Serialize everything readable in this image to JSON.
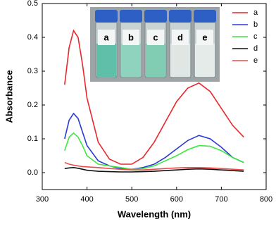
{
  "chart_data": {
    "type": "line",
    "x_label": "Wavelength (nm)",
    "y_label": "Absorbance",
    "x": [
      350,
      360,
      370,
      380,
      390,
      400,
      425,
      450,
      475,
      500,
      525,
      550,
      575,
      600,
      625,
      650,
      675,
      700,
      725,
      750
    ],
    "series": [
      {
        "name": "a",
        "color": "#e8262b",
        "values": [
          0.26,
          0.37,
          0.42,
          0.4,
          0.32,
          0.22,
          0.09,
          0.04,
          0.025,
          0.025,
          0.045,
          0.09,
          0.15,
          0.21,
          0.25,
          0.265,
          0.24,
          0.19,
          0.14,
          0.105
        ]
      },
      {
        "name": "b",
        "color": "#2a3bd1",
        "values": [
          0.1,
          0.155,
          0.175,
          0.16,
          0.12,
          0.08,
          0.035,
          0.02,
          0.012,
          0.01,
          0.015,
          0.025,
          0.045,
          0.07,
          0.095,
          0.11,
          0.1,
          0.075,
          0.045,
          0.03
        ]
      },
      {
        "name": "c",
        "color": "#3ee63e",
        "values": [
          0.065,
          0.105,
          0.117,
          0.105,
          0.08,
          0.05,
          0.025,
          0.02,
          0.015,
          0.01,
          0.012,
          0.02,
          0.035,
          0.05,
          0.068,
          0.08,
          0.078,
          0.065,
          0.045,
          0.03
        ]
      },
      {
        "name": "d",
        "color": "#111111",
        "values": [
          0.012,
          0.014,
          0.015,
          0.013,
          0.01,
          0.007,
          0.004,
          0.003,
          0.002,
          0.002,
          0.003,
          0.004,
          0.006,
          0.008,
          0.01,
          0.011,
          0.01,
          0.008,
          0.006,
          0.004
        ]
      },
      {
        "name": "e",
        "color": "#f04a4a",
        "values": [
          0.03,
          0.025,
          0.022,
          0.02,
          0.018,
          0.017,
          0.015,
          0.012,
          0.01,
          0.008,
          0.008,
          0.01,
          0.012,
          0.014,
          0.015,
          0.015,
          0.014,
          0.012,
          0.01,
          0.008
        ]
      }
    ],
    "xlim": [
      300,
      800
    ],
    "xticks": [
      300,
      400,
      500,
      600,
      700,
      800
    ],
    "ylim": [
      -0.05,
      0.5
    ],
    "yticks": [
      {
        "value": 0,
        "label": "0.0"
      },
      0.1,
      0.2,
      0.3,
      0.4,
      0.5
    ],
    "legend": "upper right",
    "inset_labels": [
      "a",
      "b",
      "c",
      "d",
      "e"
    ]
  }
}
